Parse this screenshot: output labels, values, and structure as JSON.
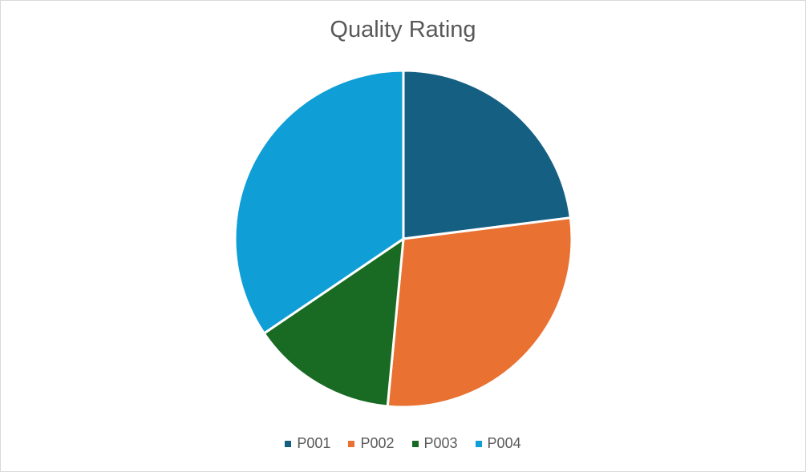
{
  "chart_data": {
    "type": "pie",
    "title": "Quality Rating",
    "categories": [
      "P001",
      "P002",
      "P003",
      "P004"
    ],
    "values": [
      4.6,
      5.7,
      2.8,
      6.9
    ],
    "colors": [
      "#156082",
      "#E97132",
      "#196B24",
      "#0F9ED5"
    ],
    "legend": "bottom"
  }
}
